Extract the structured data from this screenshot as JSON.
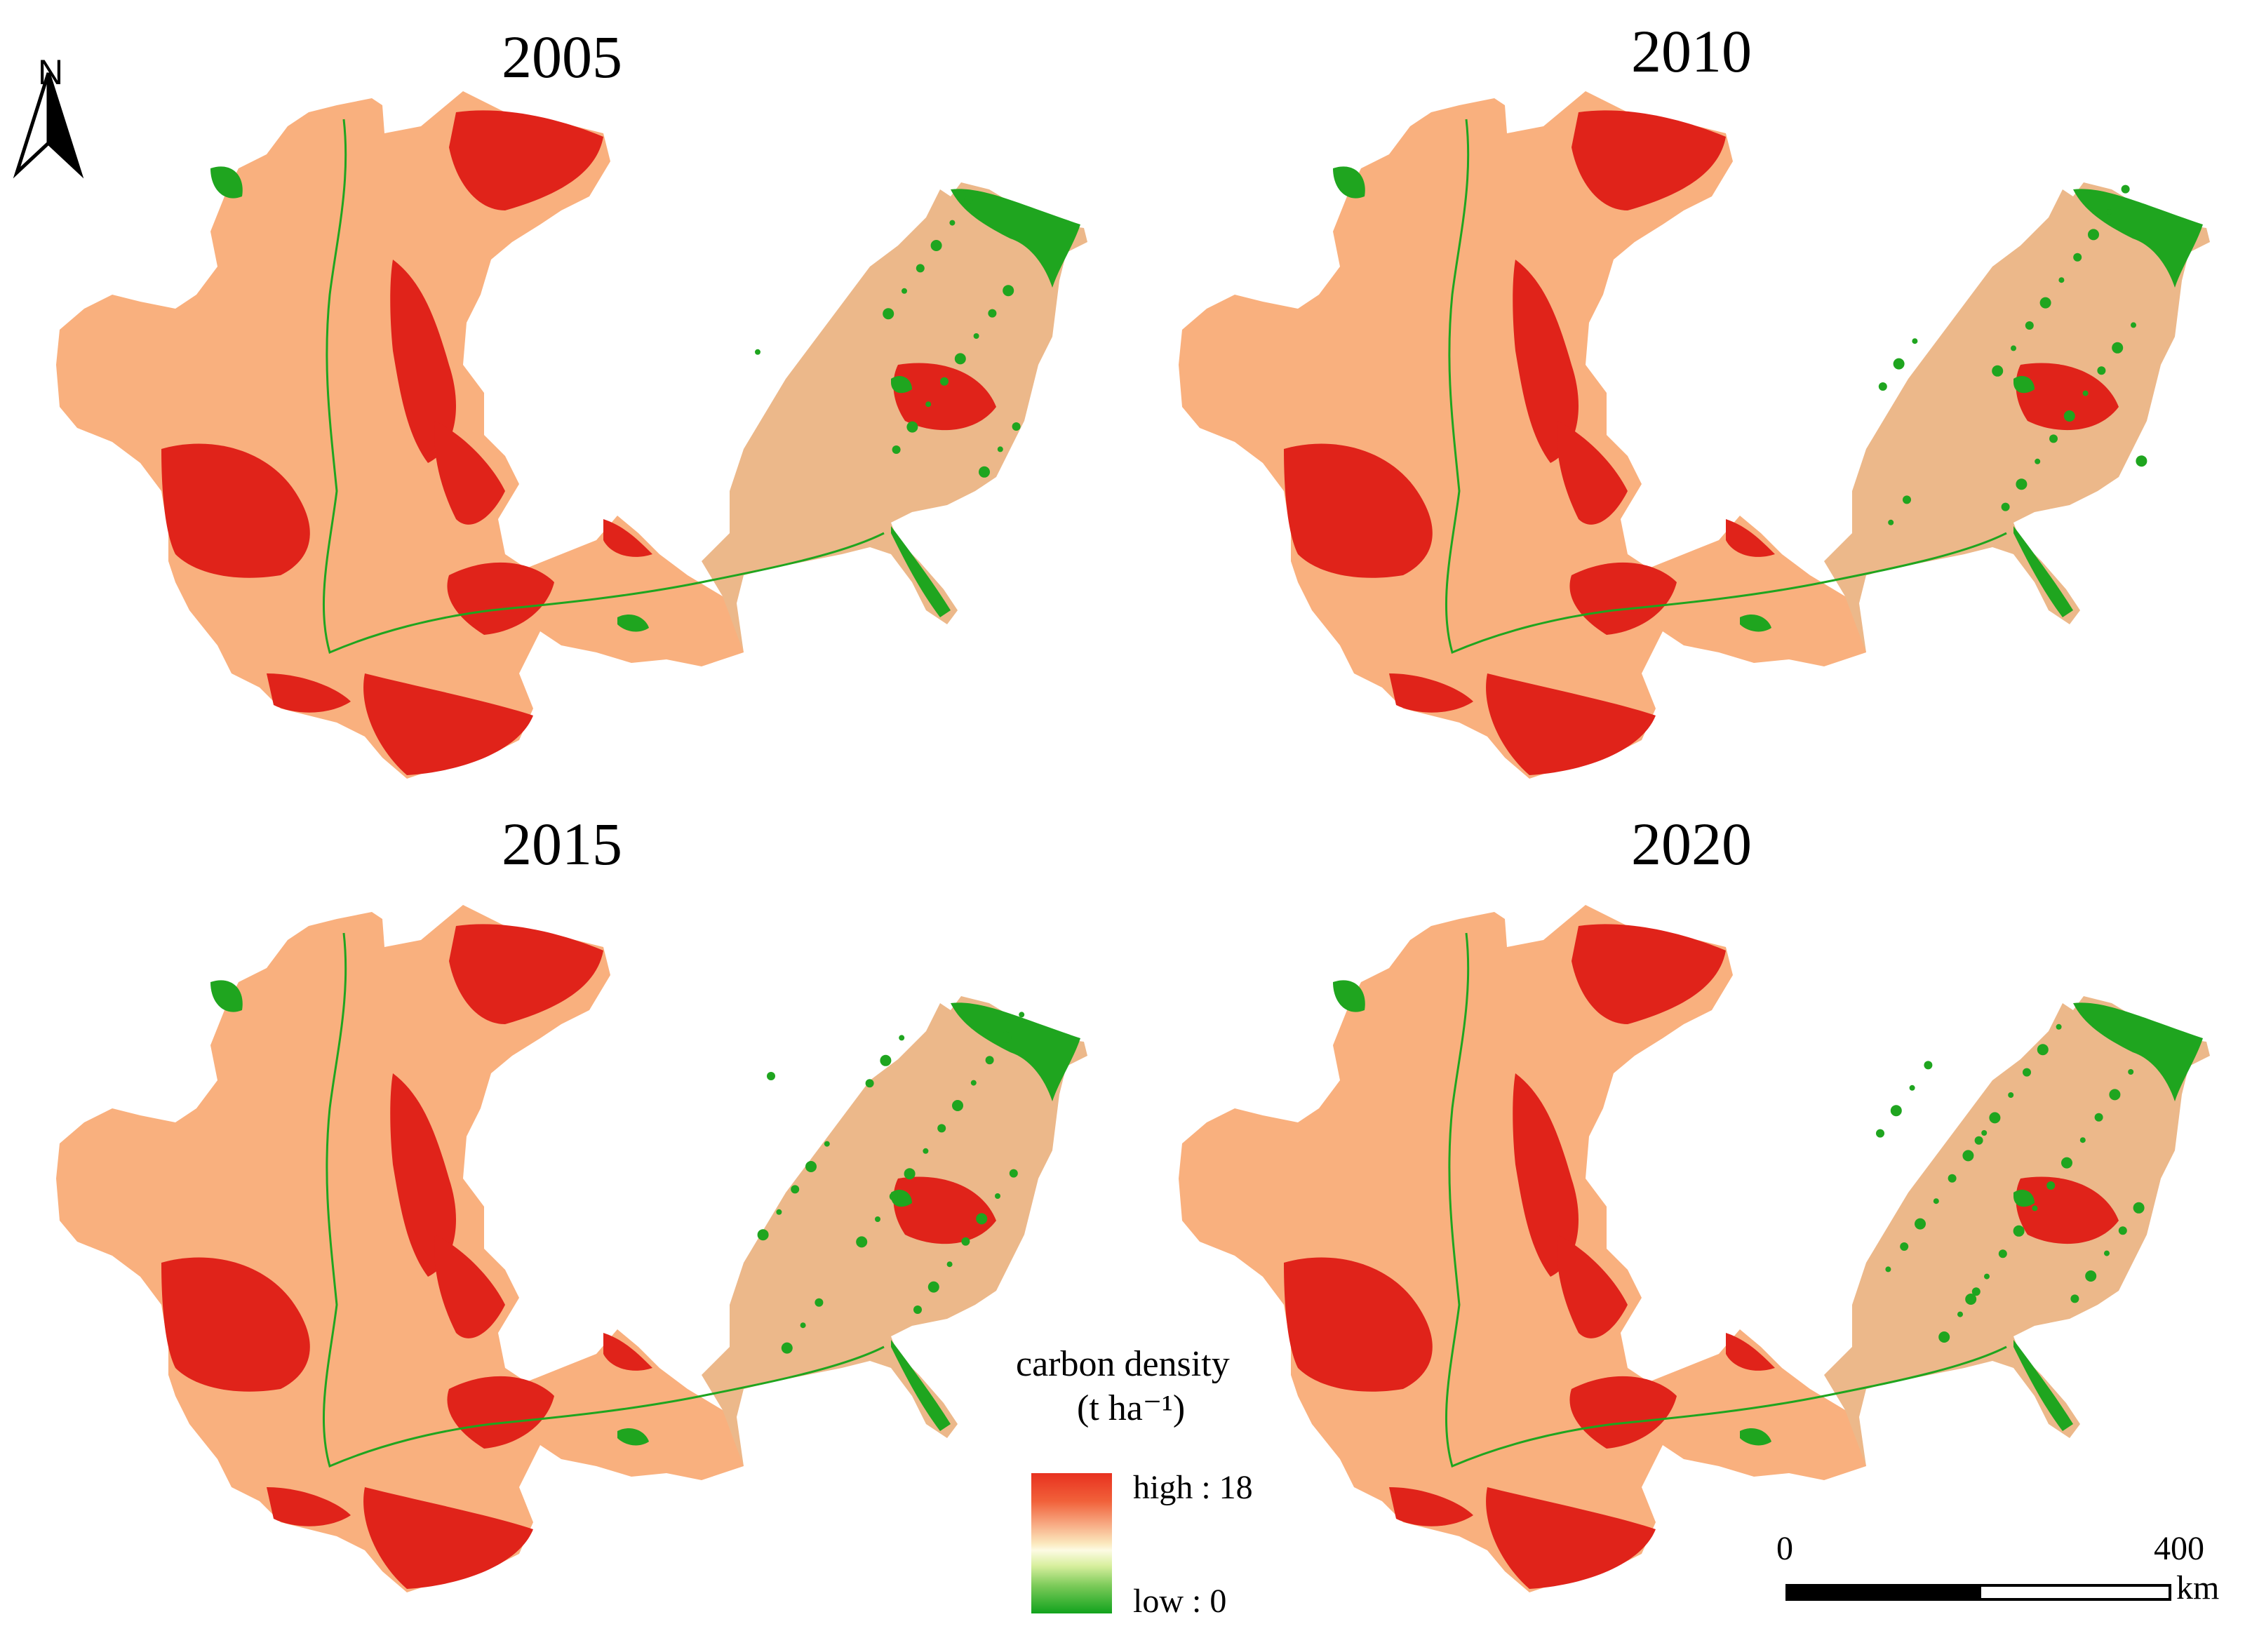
{
  "north_arrow": {
    "label": "N"
  },
  "panels": [
    {
      "year": "2005"
    },
    {
      "year": "2010"
    },
    {
      "year": "2015"
    },
    {
      "year": "2020"
    }
  ],
  "legend": {
    "title": "carbon density",
    "unit": "(t ha⁻¹)",
    "high_label": "high : 18",
    "low_label": "low : 0",
    "colors": {
      "high": "#e8311f",
      "mid": "#fdfbe3",
      "low": "#11a31d"
    }
  },
  "scale_bar": {
    "start_label": "0",
    "end_label": "400",
    "unit": "km"
  },
  "colors": {
    "grassland": "#f9b07e",
    "cropland": "#ecb88a",
    "forest": "#e0231a",
    "urban_water": "#1fa51f"
  }
}
